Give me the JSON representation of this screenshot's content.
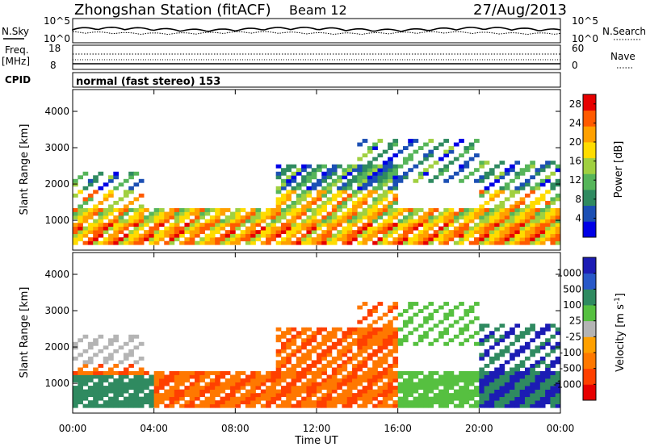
{
  "header": {
    "title": "Zhongshan Station (fitACF)",
    "beam": "Beam 12",
    "date": "27/Aug/2013"
  },
  "summary": {
    "nsky_label": "N.Sky",
    "nsky_ticks": [
      "10^5",
      "10^0"
    ],
    "nsearch_label": "N.Search",
    "nsearch_ticks": [
      "10^5",
      "10^0"
    ],
    "freq_label": "Freq.",
    "freq_unit": "[MHz]",
    "freq_ticks": [
      "18",
      "8"
    ],
    "nave_label": "Nave",
    "nave_ticks": [
      "60",
      "0"
    ],
    "cpid_label": "CPID",
    "cpid_value": "normal (fast stereo) 153"
  },
  "chart_data": [
    {
      "type": "heatmap",
      "name": "power",
      "ylabel": "Slant Range [km]",
      "xlabel": "Time UT",
      "xlim": [
        0,
        24
      ],
      "ylim": [
        180,
        4600
      ],
      "yticks": [
        "1000",
        "2000",
        "3000",
        "4000"
      ],
      "xticks": [
        "00:00",
        "04:00",
        "08:00",
        "12:00",
        "16:00",
        "20:00",
        "00:00"
      ],
      "colorbar_label": "Power [dB]",
      "colorbar_ticks": [
        "4",
        "8",
        "12",
        "16",
        "20",
        "24",
        "28"
      ],
      "colorbar_range": [
        0,
        30
      ],
      "colors": [
        "#0000e6",
        "#1b4fb4",
        "#2f8a60",
        "#56b55a",
        "#a0d040",
        "#ffdc00",
        "#ffa000",
        "#ff5a00",
        "#e60000"
      ]
    },
    {
      "type": "heatmap",
      "name": "velocity",
      "ylabel": "Slant Range [km]",
      "xlabel": "Time UT",
      "xlim": [
        0,
        24
      ],
      "ylim": [
        180,
        4600
      ],
      "yticks": [
        "1000",
        "2000",
        "3000",
        "4000"
      ],
      "xticks": [
        "00:00",
        "04:00",
        "08:00",
        "12:00",
        "16:00",
        "20:00",
        "00:00"
      ],
      "colorbar_label": "Velocity [m s",
      "colorbar_sup": "-1",
      "colorbar_close": "]",
      "colorbar_ticks": [
        "1000",
        "500",
        "100",
        "25",
        "-25",
        "-100",
        "-500",
        "-1000"
      ],
      "colors": [
        "#1c1cb4",
        "#2858c8",
        "#2f8a60",
        "#56c040",
        "#b4b4b4",
        "#ffa000",
        "#ff7800",
        "#ff4000",
        "#e60000"
      ]
    }
  ],
  "xaxis_title": "Time UT"
}
